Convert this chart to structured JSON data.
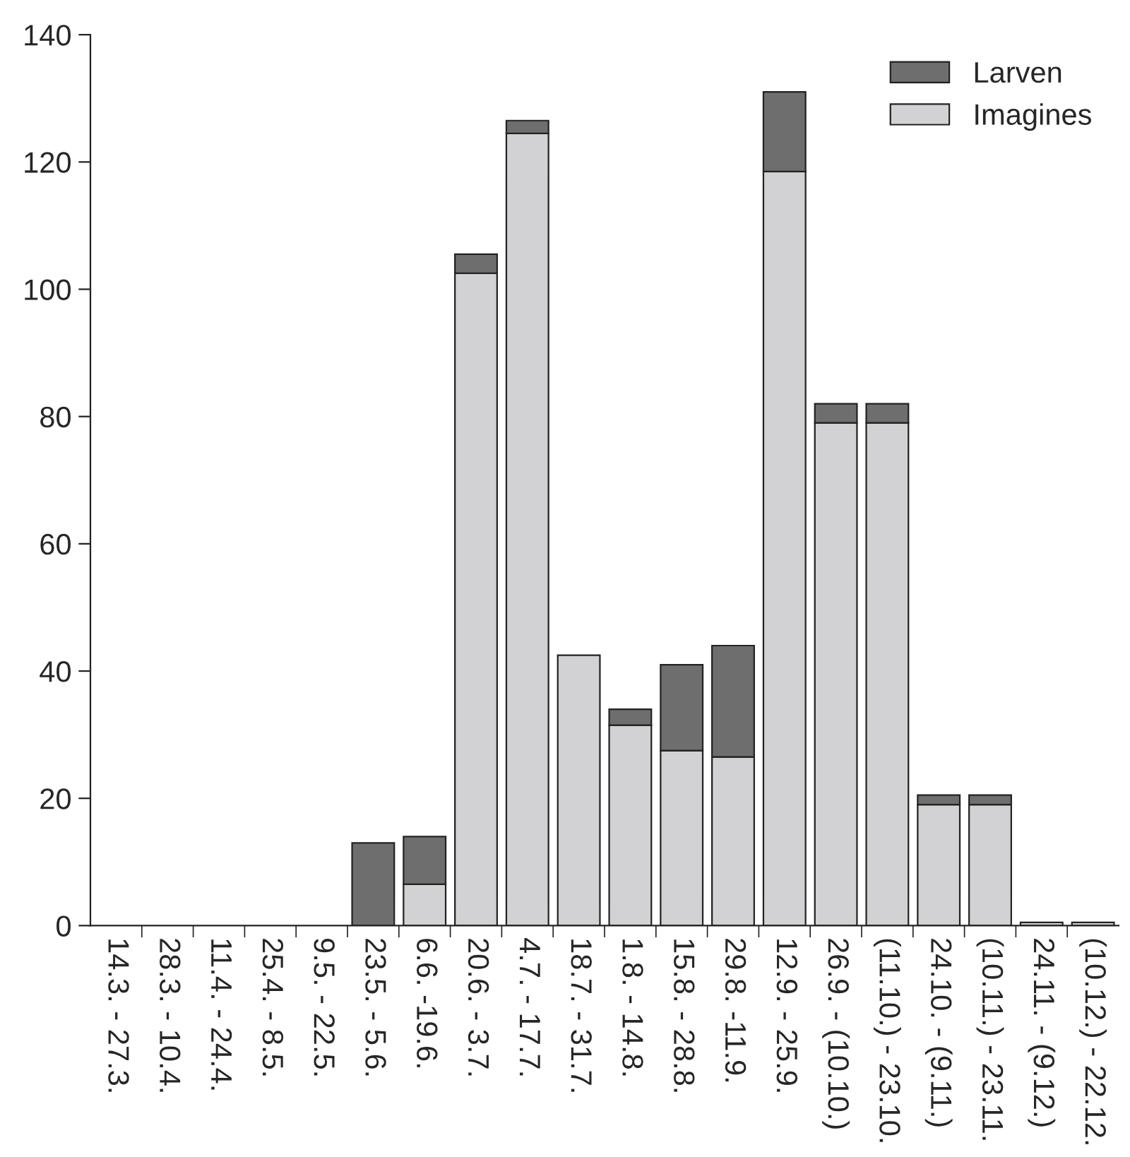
{
  "chart_data": {
    "type": "bar",
    "stacked": true,
    "categories": [
      "14.3. - 27.3.",
      "28.3. - 10.4.",
      "11.4. - 24.4.",
      "25.4. - 8.5.",
      "9.5. - 22.5.",
      "23.5. - 5.6.",
      "6.6. -19.6.",
      "20.6. - 3.7.",
      "4.7. - 17.7.",
      "18.7. - 31.7.",
      "1.8. - 14.8.",
      "15.8. - 28.8.",
      "29.8. -11.9.",
      "12.9. - 25.9.",
      "26.9. - (10.10.)",
      "(11.10.) - 23.10.",
      "24.10. - (9.11.)",
      "(10.11.) - 23.11.",
      "24.11. - (9.12.)",
      "(10.12.) - 22.12."
    ],
    "series": [
      {
        "name": "Imagines",
        "color": "#d2d2d4",
        "values": [
          0,
          0,
          0,
          0,
          0,
          0,
          6.5,
          102.5,
          124.5,
          42.5,
          31.5,
          27.5,
          26.5,
          118.5,
          79,
          79,
          19,
          19,
          0.5,
          0.5
        ]
      },
      {
        "name": "Larven",
        "color": "#6e6e6e",
        "values": [
          0,
          0,
          0,
          0,
          0,
          13,
          7.5,
          3,
          2,
          0,
          2.5,
          13.5,
          17.5,
          12.5,
          3,
          3,
          1.5,
          1.5,
          0,
          0
        ]
      }
    ],
    "ylim": [
      0,
      140
    ],
    "yticks": [
      0,
      20,
      40,
      60,
      80,
      100,
      120,
      140
    ],
    "grid": false,
    "legend": "top right"
  }
}
